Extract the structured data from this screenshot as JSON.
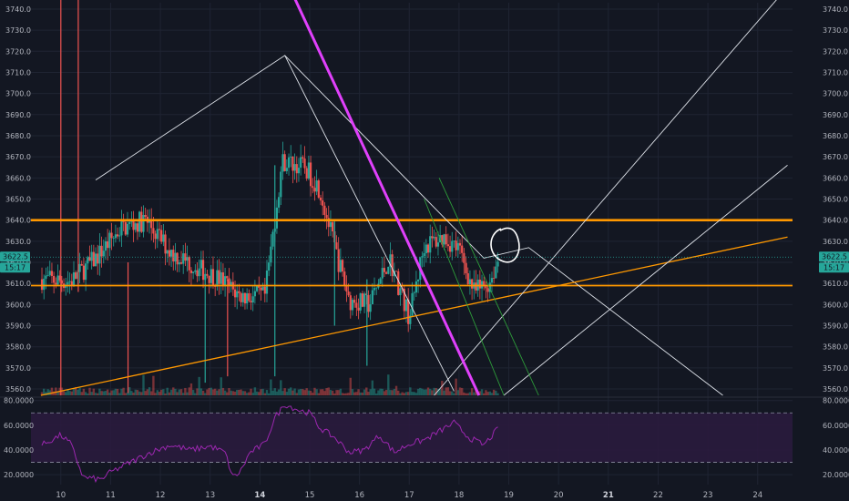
{
  "chart_data": {
    "type": "candlestick",
    "price_axis": {
      "ticks": [
        "3740.0",
        "3730.0",
        "3720.0",
        "3710.0",
        "3700.0",
        "3690.0",
        "3680.0",
        "3670.0",
        "3660.0",
        "3650.0",
        "3640.0",
        "3630.0",
        "3620.0",
        "3610.0",
        "3600.0",
        "3590.0",
        "3580.0",
        "3570.0",
        "3560.0"
      ],
      "range": [
        3557,
        3743
      ],
      "current_price": "3622.5",
      "countdown": "15:17"
    },
    "time_axis": {
      "labels": [
        {
          "text": "10",
          "day": 10,
          "bold": false
        },
        {
          "text": "11",
          "day": 11,
          "bold": false
        },
        {
          "text": "12",
          "day": 12,
          "bold": false
        },
        {
          "text": "13",
          "day": 13,
          "bold": false
        },
        {
          "text": "14",
          "day": 14,
          "bold": true
        },
        {
          "text": "15",
          "day": 15,
          "bold": false
        },
        {
          "text": "16",
          "day": 16,
          "bold": false
        },
        {
          "text": "17",
          "day": 17,
          "bold": false
        },
        {
          "text": "18",
          "day": 18,
          "bold": false
        },
        {
          "text": "19",
          "day": 19,
          "bold": false
        },
        {
          "text": "20",
          "day": 20,
          "bold": false
        },
        {
          "text": "21",
          "day": 21,
          "bold": true
        },
        {
          "text": "22",
          "day": 22,
          "bold": false
        },
        {
          "text": "23",
          "day": 23,
          "bold": false
        },
        {
          "text": "24",
          "day": 24,
          "bold": false
        }
      ],
      "range": [
        9.4,
        24.7
      ]
    },
    "rsi": {
      "ticks": [
        "80.0000",
        "60.0000",
        "40.0000",
        "20.0000"
      ],
      "range": [
        12,
        82
      ],
      "upper_band": 70,
      "lower_band": 30
    },
    "horizontal_levels": [
      3640,
      3609
    ],
    "trend_lines": [
      {
        "kind": "triangle",
        "points": [
          [
            10.7,
            3659
          ],
          [
            14.5,
            3718
          ],
          [
            17.9,
            3559
          ]
        ]
      },
      {
        "kind": "diagonal",
        "points": [
          [
            14.5,
            3718
          ],
          [
            18.5,
            3622
          ],
          [
            19.4,
            3627
          ],
          [
            23.3,
            3557
          ]
        ]
      },
      {
        "kind": "rising",
        "points": [
          [
            9.6,
            3557
          ],
          [
            24.6,
            3632
          ]
        ]
      },
      {
        "kind": "fan",
        "points": [
          [
            17.5,
            3557
          ],
          [
            24.4,
            3745
          ]
        ]
      },
      {
        "kind": "fan",
        "points": [
          [
            18.9,
            3557
          ],
          [
            24.6,
            3666
          ]
        ]
      },
      {
        "kind": "steep",
        "points": [
          [
            14.7,
            3745
          ],
          [
            18.4,
            3557
          ]
        ]
      },
      {
        "kind": "channel",
        "points": [
          [
            17.6,
            3660
          ],
          [
            19.6,
            3557
          ]
        ]
      },
      {
        "kind": "channel",
        "points": [
          [
            17.3,
            3650
          ],
          [
            18.9,
            3557
          ]
        ]
      }
    ],
    "circle_annotation": {
      "day": 18.97,
      "price": 3629
    }
  },
  "colors": {
    "background": "#131722",
    "grid": "#1f2433",
    "up": "#26a69a",
    "down": "#ef5350",
    "level": "#ff9800",
    "steep_line": "#e040fb",
    "channel": "#2e9d3a",
    "rsi_line": "#9c27b0",
    "rsi_band": "#2a1b3d",
    "badge": "#26a69a"
  }
}
